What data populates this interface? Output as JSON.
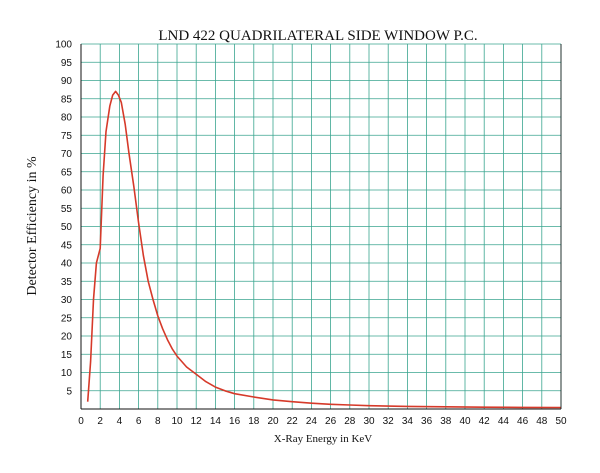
{
  "chart_data": {
    "type": "line",
    "title": "LND 422 QUADRILATERAL SIDE WINDOW P.C.",
    "xlabel": "X-Ray Energy in KeV",
    "ylabel": "Detector Efficiency in %",
    "xlim": [
      0,
      50
    ],
    "ylim": [
      0,
      100
    ],
    "x_ticks": [
      "0",
      "2",
      "4",
      "6",
      "8",
      "10",
      "12",
      "14",
      "16",
      "18",
      "20",
      "22",
      "24",
      "26",
      "28",
      "30",
      "32",
      "34",
      "36",
      "38",
      "40",
      "42",
      "44",
      "46",
      "48",
      "50"
    ],
    "y_ticks": [
      "5",
      "10",
      "15",
      "20",
      "25",
      "30",
      "35",
      "40",
      "45",
      "50",
      "55",
      "60",
      "65",
      "70",
      "75",
      "80",
      "85",
      "90",
      "95",
      "100"
    ],
    "grid": true,
    "colors": {
      "grid": "#3aa58f",
      "line": "#d63a2a",
      "axis": "#111111"
    },
    "series": [
      {
        "x": [
          0.7,
          1.0,
          1.3,
          1.6,
          2.0,
          2.3,
          2.6,
          3.0,
          3.3,
          3.6,
          3.9,
          4.2,
          4.6,
          5.0,
          5.5,
          6.0,
          6.5,
          7.0,
          7.5,
          8.0,
          8.5,
          9.0,
          9.5,
          10.0,
          11.0,
          12.0,
          13.0,
          14.0,
          15.0,
          16.0,
          18.0,
          20.0,
          22.0,
          24.0,
          26.0,
          28.0,
          30.0,
          34.0,
          38.0,
          42.0,
          46.0,
          50.0
        ],
        "y": [
          2,
          13,
          30,
          40,
          44,
          64,
          76,
          83,
          86,
          87,
          86,
          84,
          78,
          70,
          61,
          51,
          42,
          35,
          30,
          25.5,
          22,
          19,
          16.5,
          14.5,
          11.5,
          9.5,
          7.5,
          6,
          5,
          4.2,
          3.3,
          2.5,
          2.0,
          1.6,
          1.3,
          1.1,
          0.9,
          0.7,
          0.6,
          0.5,
          0.45,
          0.4
        ]
      }
    ]
  }
}
